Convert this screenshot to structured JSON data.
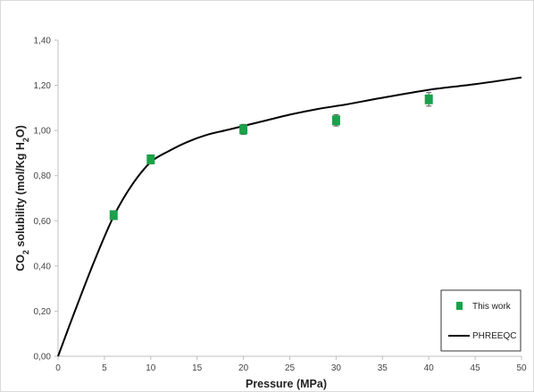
{
  "chart_data": {
    "type": "scatter",
    "xlabel": "Pressure (MPa)",
    "ylabel": "CO2 solubility (mol/Kg H2O)",
    "ylabel_parts": {
      "a": "CO",
      "a_sub": "2",
      "b": " solubility (mol/Kg H",
      "b_sub": "2",
      "c": "O)"
    },
    "xlim": [
      0,
      50
    ],
    "ylim": [
      0,
      1.4
    ],
    "xticks": [
      0,
      5,
      10,
      15,
      20,
      25,
      30,
      35,
      40,
      45,
      50
    ],
    "yticks": [
      0,
      0.2,
      0.4,
      0.6,
      0.8,
      1.0,
      1.2,
      1.4
    ],
    "xtick_labels": [
      "0",
      "5",
      "10",
      "15",
      "20",
      "25",
      "30",
      "35",
      "40",
      "45",
      "50"
    ],
    "ytick_labels": [
      "0,00",
      "0,20",
      "0,40",
      "0,60",
      "0,80",
      "1,00",
      "1,20",
      "1,40"
    ],
    "grid": false,
    "legend_position": "bottom-right",
    "series": [
      {
        "name": "This work",
        "kind": "markers",
        "color": "#1aa14a",
        "x": [
          6,
          10,
          20,
          30,
          40
        ],
        "y": [
          0.625,
          0.872,
          1.005,
          1.045,
          1.138
        ],
        "err": [
          0.018,
          0.02,
          0.022,
          0.025,
          0.03
        ]
      },
      {
        "name": "PHREEQC",
        "kind": "line",
        "color": "#000000",
        "x": [
          0,
          2,
          4,
          6,
          8,
          10,
          12,
          14,
          16,
          18,
          20,
          22,
          25,
          28,
          31,
          35,
          40,
          45,
          50
        ],
        "y": [
          0,
          0.22,
          0.43,
          0.62,
          0.76,
          0.86,
          0.91,
          0.95,
          0.98,
          1.0,
          1.02,
          1.04,
          1.07,
          1.095,
          1.115,
          1.145,
          1.18,
          1.205,
          1.235
        ]
      }
    ]
  }
}
